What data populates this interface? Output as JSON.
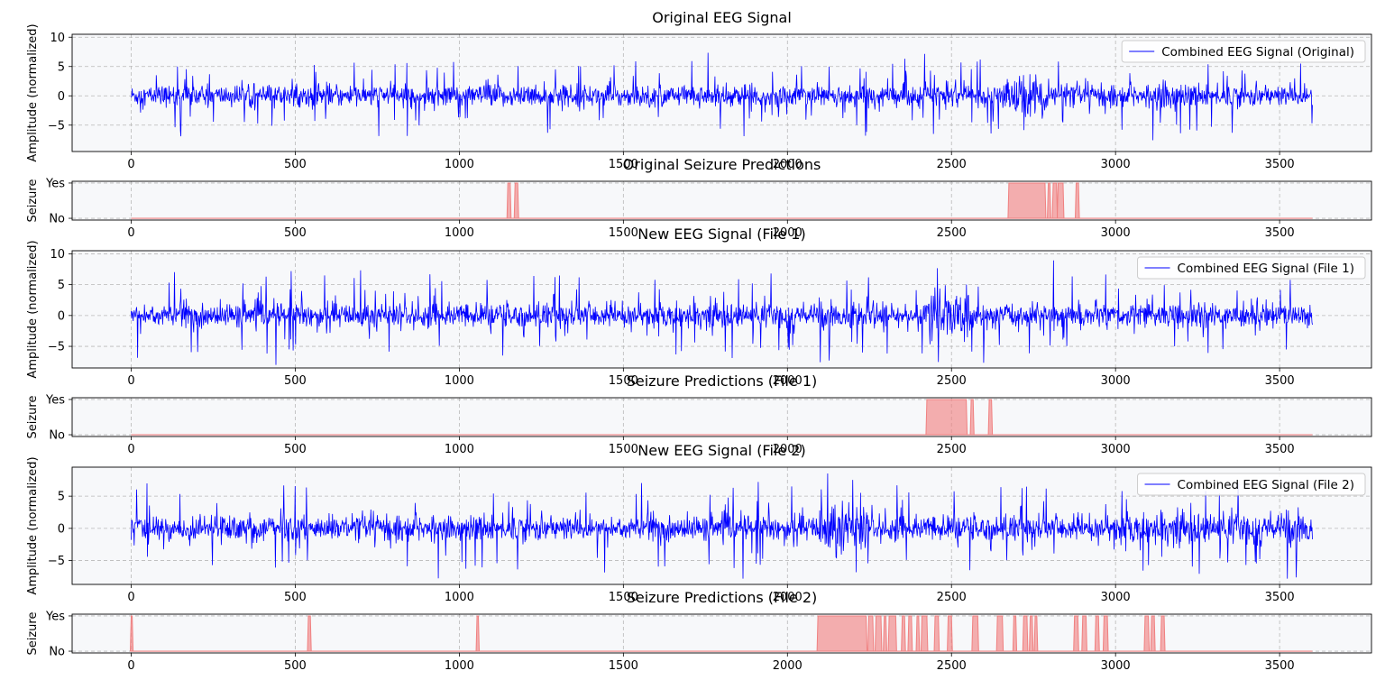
{
  "figure_title": "",
  "panels": [
    {
      "kind": "signal",
      "title": "Original EEG Signal",
      "ylabel": "Amplitude (normalized)",
      "legend": "Combined EEG Signal (Original)"
    },
    {
      "kind": "prediction",
      "title": "Original Seizure Predictions",
      "ylabel": "Seizure"
    },
    {
      "kind": "signal",
      "title": "New EEG Signal (File 1)",
      "ylabel": "Amplitude (normalized)",
      "legend": "Combined EEG Signal (File 1)"
    },
    {
      "kind": "prediction",
      "title": "Seizure Predictions (File 1)",
      "ylabel": "Seizure"
    },
    {
      "kind": "signal",
      "title": "New EEG Signal (File 2)",
      "ylabel": "Amplitude (normalized)",
      "legend": "Combined EEG Signal (File 2)"
    },
    {
      "kind": "prediction",
      "title": "Seizure Predictions (File 2)",
      "ylabel": "Seizure"
    }
  ],
  "chart_data": [
    {
      "type": "line",
      "title": "Original EEG Signal",
      "xlabel": "",
      "ylabel": "Amplitude (normalized)",
      "xlim": [
        -180,
        3780
      ],
      "ylim": [
        -9.5,
        10.5
      ],
      "x_ticks": [
        0,
        500,
        1000,
        1500,
        2000,
        2500,
        3000,
        3500
      ],
      "y_ticks": [
        -5,
        0,
        5,
        10
      ],
      "grid": true,
      "legend_position": "top-right",
      "series": [
        {
          "name": "Combined EEG Signal (Original)",
          "color": "#0000ff",
          "x_range": [
            0,
            3600
          ],
          "typical_amplitude": 1.2,
          "peak_min": -8.5,
          "peak_max": 9.2,
          "bursts": [
            {
              "x_from": 2670,
              "x_to": 2800,
              "amplitude": 2.6
            },
            {
              "x_from": 3120,
              "x_to": 3200,
              "amplitude": 1.8
            }
          ]
        }
      ]
    },
    {
      "type": "area",
      "title": "Original Seizure Predictions",
      "ylabel": "Seizure",
      "xlim": [
        -180,
        3780
      ],
      "y_tick_labels": [
        "No",
        "Yes"
      ],
      "x_ticks": [
        0,
        500,
        1000,
        1500,
        2000,
        2500,
        3000,
        3500
      ],
      "grid": true,
      "series": [
        {
          "name": "",
          "color": "#f08080",
          "x_range": [
            0,
            3600
          ],
          "seizure_intervals": [
            [
              1148,
              1155
            ],
            [
              1170,
              1178
            ],
            [
              2675,
              2785
            ],
            [
              2795,
              2800
            ],
            [
              2810,
              2820
            ],
            [
              2825,
              2840
            ],
            [
              2880,
              2887
            ]
          ]
        }
      ]
    },
    {
      "type": "line",
      "title": "New EEG Signal (File 1)",
      "xlabel": "",
      "ylabel": "Amplitude (normalized)",
      "xlim": [
        -180,
        3780
      ],
      "ylim": [
        -8.5,
        10.5
      ],
      "x_ticks": [
        0,
        500,
        1000,
        1500,
        2000,
        2500,
        3000,
        3500
      ],
      "y_ticks": [
        -5,
        0,
        5,
        10
      ],
      "grid": true,
      "legend_position": "top-right",
      "series": [
        {
          "name": "Combined EEG Signal (File 1)",
          "color": "#0000ff",
          "x_range": [
            0,
            3600
          ],
          "typical_amplitude": 1.3,
          "peak_min": -8.0,
          "peak_max": 9.4,
          "bursts": [
            {
              "x_from": 2420,
              "x_to": 2560,
              "amplitude": 2.8
            }
          ]
        }
      ]
    },
    {
      "type": "area",
      "title": "Seizure Predictions (File 1)",
      "ylabel": "Seizure",
      "xlim": [
        -180,
        3780
      ],
      "y_tick_labels": [
        "No",
        "Yes"
      ],
      "x_ticks": [
        0,
        500,
        1000,
        1500,
        2000,
        2500,
        3000,
        3500
      ],
      "grid": true,
      "series": [
        {
          "name": "",
          "color": "#f08080",
          "x_range": [
            0,
            3600
          ],
          "seizure_intervals": [
            [
              2425,
              2545
            ],
            [
              2560,
              2566
            ],
            [
              2615,
              2622
            ]
          ]
        }
      ]
    },
    {
      "type": "line",
      "title": "New EEG Signal (File 2)",
      "xlabel": "",
      "ylabel": "Amplitude (normalized)",
      "xlim": [
        -180,
        3780
      ],
      "ylim": [
        -8.7,
        9.5
      ],
      "x_ticks": [
        0,
        500,
        1000,
        1500,
        2000,
        2500,
        3000,
        3500
      ],
      "y_ticks": [
        -5,
        0,
        5
      ],
      "grid": true,
      "legend_position": "top-right",
      "series": [
        {
          "name": "Combined EEG Signal (File 2)",
          "color": "#0000ff",
          "x_range": [
            0,
            3600
          ],
          "typical_amplitude": 1.3,
          "peak_min": -7.8,
          "peak_max": 8.6,
          "bursts": [
            {
              "x_from": 2095,
              "x_to": 2250,
              "amplitude": 2.8
            },
            {
              "x_from": 2980,
              "x_to": 3600,
              "amplitude": 1.6
            }
          ]
        }
      ]
    },
    {
      "type": "area",
      "title": "Seizure Predictions (File 2)",
      "ylabel": "Seizure",
      "xlim": [
        -180,
        3780
      ],
      "y_tick_labels": [
        "No",
        "Yes"
      ],
      "x_ticks": [
        0,
        500,
        1000,
        1500,
        2000,
        2500,
        3000,
        3500
      ],
      "grid": true,
      "series": [
        {
          "name": "",
          "color": "#f08080",
          "x_range": [
            0,
            3600
          ],
          "seizure_intervals": [
            [
              0,
              3
            ],
            [
              540,
              546
            ],
            [
              1054,
              1058
            ],
            [
              2093,
              2240
            ],
            [
              2248,
              2260
            ],
            [
              2270,
              2285
            ],
            [
              2295,
              2300
            ],
            [
              2310,
              2330
            ],
            [
              2350,
              2357
            ],
            [
              2370,
              2378
            ],
            [
              2395,
              2400
            ],
            [
              2410,
              2425
            ],
            [
              2450,
              2460
            ],
            [
              2490,
              2500
            ],
            [
              2565,
              2580
            ],
            [
              2640,
              2655
            ],
            [
              2690,
              2696
            ],
            [
              2720,
              2730
            ],
            [
              2740,
              2746
            ],
            [
              2755,
              2760
            ],
            [
              2875,
              2885
            ],
            [
              2900,
              2910
            ],
            [
              2940,
              2948
            ],
            [
              2965,
              2975
            ],
            [
              3090,
              3100
            ],
            [
              3110,
              3118
            ],
            [
              3140,
              3148
            ]
          ]
        }
      ]
    }
  ]
}
